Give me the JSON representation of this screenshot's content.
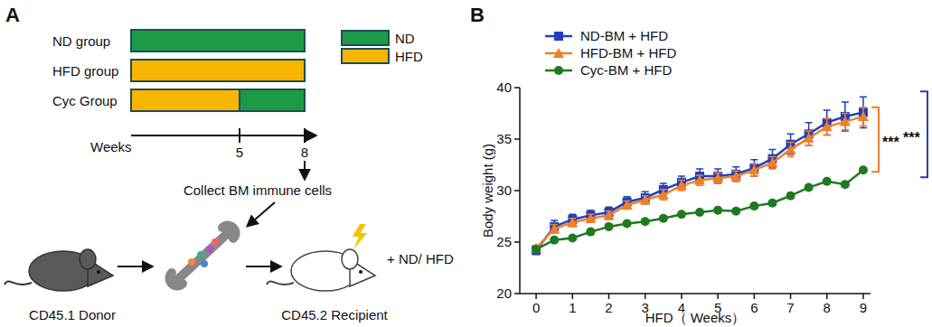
{
  "panel_a": {
    "panel_label": "A",
    "groups": [
      {
        "name": "ND group",
        "segments": [
          {
            "diet": "ND",
            "from": 0,
            "to": 8
          }
        ]
      },
      {
        "name": "HFD group",
        "segments": [
          {
            "diet": "HFD",
            "from": 0,
            "to": 8
          }
        ]
      },
      {
        "name": "Cyc Group",
        "segments": [
          {
            "diet": "HFD",
            "from": 0,
            "to": 5
          },
          {
            "diet": "ND",
            "from": 5,
            "to": 8
          }
        ]
      }
    ],
    "legend": [
      {
        "label": "ND",
        "color": "#1c9a45"
      },
      {
        "label": "HFD",
        "color": "#f7b500"
      }
    ],
    "axis_label": "Weeks",
    "ticks": [
      5,
      8
    ],
    "caption": "Collect BM immune cells",
    "donor": "CD45.1 Donor",
    "recipient": "CD45.2 Recipient",
    "treatment": "+ ND/ HFD"
  },
  "chart_data": {
    "type": "line",
    "panel_label": "B",
    "x_label": "HFD（ Weeks）",
    "y_label": "Body weight (g)",
    "x": [
      0,
      0.5,
      1,
      1.5,
      2,
      2.5,
      3,
      3.5,
      4,
      4.5,
      5,
      5.5,
      6,
      6.5,
      7,
      7.5,
      8,
      8.5,
      9
    ],
    "series": [
      {
        "name": "ND-BM + HFD",
        "color": "#1f3fbf",
        "marker": "square",
        "values": [
          24.2,
          26.5,
          27.2,
          27.6,
          27.9,
          28.9,
          29.3,
          30.1,
          30.8,
          31.4,
          31.4,
          31.6,
          32.2,
          33.1,
          34.5,
          35.5,
          36.6,
          37.2,
          37.6
        ],
        "errors": [
          0.4,
          0.6,
          0.5,
          0.5,
          0.5,
          0.5,
          0.6,
          0.6,
          0.6,
          0.7,
          0.7,
          0.7,
          0.8,
          0.9,
          1.0,
          1.1,
          1.2,
          1.4,
          1.5
        ]
      },
      {
        "name": "HFD-BM + HFD",
        "color": "#f07f2a",
        "marker": "triangle",
        "values": [
          24.4,
          26.3,
          26.9,
          27.3,
          27.6,
          28.6,
          29.1,
          29.6,
          30.5,
          31.0,
          31.2,
          31.4,
          32.0,
          32.7,
          34.0,
          35.1,
          36.2,
          36.7,
          37.2
        ],
        "errors": [
          0.3,
          0.4,
          0.4,
          0.4,
          0.4,
          0.4,
          0.4,
          0.5,
          0.5,
          0.5,
          0.5,
          0.5,
          0.6,
          0.6,
          0.7,
          0.7,
          0.8,
          0.8,
          0.9
        ]
      },
      {
        "name": "Cyc-BM + HFD",
        "color": "#1e7a1e",
        "marker": "circle",
        "values": [
          24.3,
          25.2,
          25.4,
          26.0,
          26.5,
          26.8,
          27.0,
          27.3,
          27.7,
          27.9,
          28.1,
          28.0,
          28.5,
          28.8,
          29.5,
          30.3,
          30.9,
          30.6,
          32.0
        ],
        "errors": [
          0.2,
          0.2,
          0.2,
          0.2,
          0.2,
          0.2,
          0.2,
          0.2,
          0.2,
          0.2,
          0.2,
          0.2,
          0.2,
          0.2,
          0.2,
          0.2,
          0.2,
          0.2,
          0.2
        ]
      }
    ],
    "xlim": [
      -0.45,
      9.2
    ],
    "xticks": [
      0,
      1,
      2,
      3,
      4,
      5,
      6,
      7,
      8,
      9
    ],
    "ylim": [
      20,
      40
    ],
    "yticks": [
      20,
      25,
      30,
      35,
      40
    ],
    "legend": "upper left",
    "annotations": [
      {
        "text": "***",
        "between": [
          "HFD-BM + HFD",
          "Cyc-BM + HFD"
        ]
      },
      {
        "text": "***",
        "between": [
          "ND-BM + HFD",
          "Cyc-BM + HFD"
        ]
      }
    ]
  }
}
